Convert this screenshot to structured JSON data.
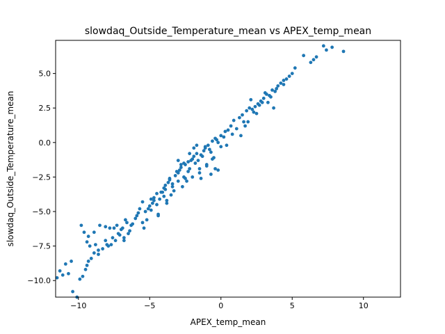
{
  "chart_data": {
    "type": "scatter",
    "title": "slowdaq_Outside_Temperature_mean vs APEX_temp_mean",
    "xlabel": "APEX_temp_mean",
    "ylabel": "slowdaq_Outside_Temperature_mean",
    "xlim": [
      -11.6,
      12.6
    ],
    "ylim": [
      -11.2,
      7.4
    ],
    "xticks": [
      -10,
      -5,
      0,
      5,
      10
    ],
    "xtick_labels": [
      "−10",
      "−5",
      "0",
      "5",
      "10"
    ],
    "yticks": [
      -10.0,
      -7.5,
      -5.0,
      -2.5,
      0.0,
      2.5,
      5.0
    ],
    "ytick_labels": [
      "−10.0",
      "−7.5",
      "−5.0",
      "−2.5",
      "0.0",
      "2.5",
      "5.0"
    ],
    "grid": false,
    "marker_color": "#1f77b4",
    "x": [
      -11.5,
      -11.3,
      -11.1,
      -10.9,
      -10.7,
      -10.5,
      -10.4,
      -10.1,
      -9.9,
      -9.7,
      -9.5,
      -9.4,
      -9.3,
      -9.1,
      -8.9,
      -9.8,
      -9.6,
      -9.4,
      -9.3,
      -8.8,
      -8.6,
      -8.3,
      -8.1,
      -8.0,
      -7.8,
      -7.6,
      -7.3,
      -7.2,
      -7.0,
      -6.9,
      -6.7,
      -6.6,
      -6.4,
      -6.2,
      -6.0,
      -5.8,
      -5.7,
      -5.5,
      -5.3,
      -5.0,
      -4.8,
      -4.7,
      -4.5,
      -4.3,
      -4.1,
      -4.0,
      -3.9,
      -3.7,
      -3.6,
      -3.4,
      -3.2,
      -3.0,
      -2.9,
      -2.8,
      -2.6,
      -2.5,
      -2.3,
      -2.2,
      -2.0,
      -1.9,
      -1.7,
      -1.6,
      -1.4,
      -1.2,
      -1.1,
      -0.9,
      -0.7,
      -0.6,
      -0.4,
      -0.2,
      0.0,
      0.2,
      0.3,
      0.5,
      0.7,
      0.9,
      1.1,
      1.3,
      1.5,
      1.6,
      1.8,
      2.0,
      2.2,
      2.4,
      2.6,
      2.8,
      3.0,
      3.2,
      3.4,
      3.6,
      3.8,
      4.0,
      4.2,
      4.4,
      4.6,
      4.8,
      5.0,
      5.2,
      5.8,
      6.3,
      6.5,
      6.7,
      7.2,
      7.4,
      7.8,
      8.6,
      -5.1,
      -4.7,
      -4.4,
      -4.0,
      -3.8,
      -3.5,
      -3.3,
      -3.0,
      -2.7,
      -2.5,
      -2.3,
      -2.0,
      -1.8,
      -1.5,
      -1.3,
      -1.0,
      -0.8,
      -0.5,
      -0.3,
      0.0,
      0.4,
      0.8,
      -6.5,
      -6.8,
      -6.3,
      -5.9,
      -5.5,
      -5.2,
      -4.9,
      -4.5,
      -4.2,
      -3.9,
      -3.6,
      -3.1,
      -2.8,
      -2.4,
      -2.1,
      -1.7,
      -1.4,
      -1.1,
      -0.7,
      -0.4,
      -3.8,
      -3.4,
      -3.0,
      -2.6,
      -2.2,
      -1.9,
      -1.5,
      -1.0,
      -0.6,
      -0.2,
      -8.9,
      -8.5,
      -8.1,
      -7.7,
      -7.4,
      -7.1,
      -6.8,
      -5.4,
      -4.9,
      -4.4,
      1.4,
      1.9,
      2.3,
      2.7,
      3.1,
      3.5,
      3.9,
      4.4,
      2.1,
      2.5,
      3.3,
      3.7,
      1.7,
      2.9,
      -9.2,
      -8.6,
      -7.9,
      -7.5
    ],
    "y": [
      -9.8,
      -9.3,
      -9.6,
      -8.8,
      -9.5,
      -8.6,
      -10.8,
      -11.2,
      -9.9,
      -9.7,
      -9.2,
      -8.9,
      -8.6,
      -8.4,
      -8.0,
      -6.0,
      -6.5,
      -7.2,
      -6.8,
      -7.4,
      -8.1,
      -7.7,
      -6.1,
      -7.4,
      -6.2,
      -6.9,
      -6.0,
      -6.6,
      -6.3,
      -6.2,
      -5.6,
      -5.8,
      -6.4,
      -5.9,
      -5.5,
      -5.1,
      -4.8,
      -4.3,
      -5.0,
      -4.6,
      -4.4,
      -4.0,
      -3.7,
      -4.1,
      -3.6,
      -3.3,
      -3.1,
      -2.9,
      -2.6,
      -3.0,
      -2.4,
      -2.2,
      -2.0,
      -1.8,
      -2.5,
      -1.6,
      -1.4,
      -1.9,
      -1.2,
      -1.0,
      -0.8,
      -1.3,
      -0.9,
      -0.6,
      -0.4,
      -0.2,
      -0.7,
      0.1,
      0.3,
      0.0,
      0.5,
      0.4,
      0.8,
      0.9,
      1.2,
      1.6,
      1.0,
      1.8,
      2.0,
      1.5,
      2.3,
      2.5,
      2.4,
      2.6,
      2.8,
      3.0,
      3.2,
      3.5,
      3.4,
      3.8,
      3.7,
      4.1,
      4.3,
      4.5,
      4.6,
      4.8,
      5.0,
      5.4,
      6.3,
      5.8,
      6.0,
      6.2,
      7.0,
      6.7,
      6.9,
      6.6,
      -4.8,
      -4.2,
      -5.2,
      -3.9,
      -4.4,
      -3.8,
      -3.5,
      -2.8,
      -3.2,
      -2.6,
      -2.1,
      -2.5,
      -1.5,
      -2.2,
      -1.0,
      -1.7,
      -0.5,
      -1.1,
      0.2,
      -0.3,
      -0.2,
      0.6,
      -6.6,
      -6.9,
      -6.0,
      -5.3,
      -5.8,
      -5.6,
      -4.1,
      -4.5,
      -3.6,
      -3.4,
      -2.7,
      -2.1,
      -1.6,
      -2.8,
      -1.3,
      -0.2,
      -2.6,
      -0.3,
      -2.3,
      -1.9,
      -4.2,
      -3.2,
      -1.3,
      -1.5,
      -0.8,
      -0.4,
      -1.9,
      -1.6,
      -1.2,
      -2.0,
      -6.5,
      -6.0,
      -7.1,
      -7.4,
      -7.1,
      -6.7,
      -7.1,
      -6.2,
      -4.9,
      -5.3,
      0.5,
      1.5,
      2.2,
      2.7,
      3.6,
      3.3,
      3.9,
      4.2,
      3.1,
      2.1,
      2.9,
      2.5,
      1.2,
      2.9,
      -7.5,
      -7.8,
      -7.5,
      -6.2
    ]
  }
}
